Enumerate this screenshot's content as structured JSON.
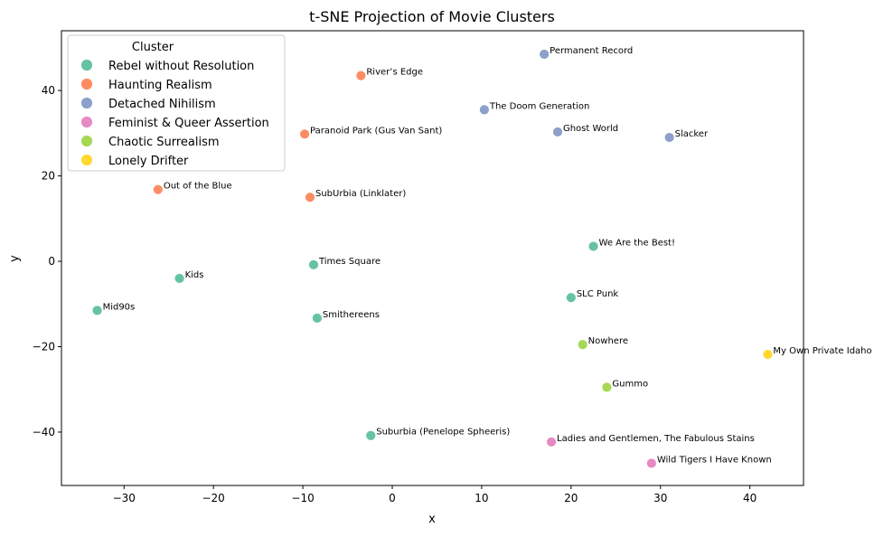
{
  "chart_data": {
    "type": "scatter",
    "title": "t-SNE Projection of Movie Clusters",
    "xlabel": "x",
    "ylabel": "y",
    "xlim": [
      -37,
      46
    ],
    "ylim": [
      -52.5,
      54
    ],
    "x_ticks": [
      -30,
      -20,
      -10,
      0,
      10,
      20,
      30,
      40
    ],
    "y_ticks": [
      -40,
      -20,
      0,
      20,
      40
    ],
    "grid": false,
    "legend": {
      "title": "Cluster",
      "position": "upper-left",
      "entries": [
        {
          "name": "Rebel without Resolution",
          "color": "#66c2a5"
        },
        {
          "name": "Haunting Realism",
          "color": "#fc8d62"
        },
        {
          "name": "Detached Nihilism",
          "color": "#8da0cb"
        },
        {
          "name": "Feminist & Queer Assertion",
          "color": "#e78ac3"
        },
        {
          "name": "Chaotic Surrealism",
          "color": "#a6d854"
        },
        {
          "name": "Lonely Drifter",
          "color": "#ffd92f"
        }
      ]
    },
    "points": [
      {
        "label": "Permanent Record",
        "x": 17.0,
        "y": 48.5,
        "cluster": "Detached Nihilism"
      },
      {
        "label": "River’s Edge",
        "x": -3.5,
        "y": 43.5,
        "cluster": "Haunting Realism"
      },
      {
        "label": "The Doom Generation",
        "x": 10.3,
        "y": 35.5,
        "cluster": "Detached Nihilism"
      },
      {
        "label": "Paranoid Park (Gus Van Sant)",
        "x": -9.8,
        "y": 29.8,
        "cluster": "Haunting Realism"
      },
      {
        "label": "Ghost World",
        "x": 18.5,
        "y": 30.3,
        "cluster": "Detached Nihilism"
      },
      {
        "label": "Slacker",
        "x": 31.0,
        "y": 29.0,
        "cluster": "Detached Nihilism"
      },
      {
        "label": "Out of the Blue",
        "x": -26.2,
        "y": 16.8,
        "cluster": "Haunting Realism"
      },
      {
        "label": "SubUrbia (Linklater)",
        "x": -9.2,
        "y": 15.0,
        "cluster": "Haunting Realism"
      },
      {
        "label": "We Are the Best!",
        "x": 22.5,
        "y": 3.5,
        "cluster": "Rebel without Resolution"
      },
      {
        "label": "Times Square",
        "x": -8.8,
        "y": -0.8,
        "cluster": "Rebel without Resolution"
      },
      {
        "label": "Kids",
        "x": -23.8,
        "y": -4.0,
        "cluster": "Rebel without Resolution"
      },
      {
        "label": "Mid90s",
        "x": -33.0,
        "y": -11.5,
        "cluster": "Rebel without Resolution"
      },
      {
        "label": "SLC Punk",
        "x": 20.0,
        "y": -8.5,
        "cluster": "Rebel without Resolution"
      },
      {
        "label": "Smithereens",
        "x": -8.4,
        "y": -13.3,
        "cluster": "Rebel without Resolution"
      },
      {
        "label": "Nowhere",
        "x": 21.3,
        "y": -19.5,
        "cluster": "Chaotic Surrealism"
      },
      {
        "label": "My Own Private Idaho",
        "x": 42.0,
        "y": -21.8,
        "cluster": "Lonely Drifter"
      },
      {
        "label": "Gummo",
        "x": 24.0,
        "y": -29.5,
        "cluster": "Chaotic Surrealism"
      },
      {
        "label": "Suburbia (Penelope Spheeris)",
        "x": -2.4,
        "y": -40.8,
        "cluster": "Rebel without Resolution"
      },
      {
        "label": "Ladies and Gentlemen, The Fabulous Stains",
        "x": 17.8,
        "y": -42.3,
        "cluster": "Feminist & Queer Assertion"
      },
      {
        "label": "Wild Tigers I Have Known",
        "x": 29.0,
        "y": -47.3,
        "cluster": "Feminist & Queer Assertion"
      }
    ]
  }
}
